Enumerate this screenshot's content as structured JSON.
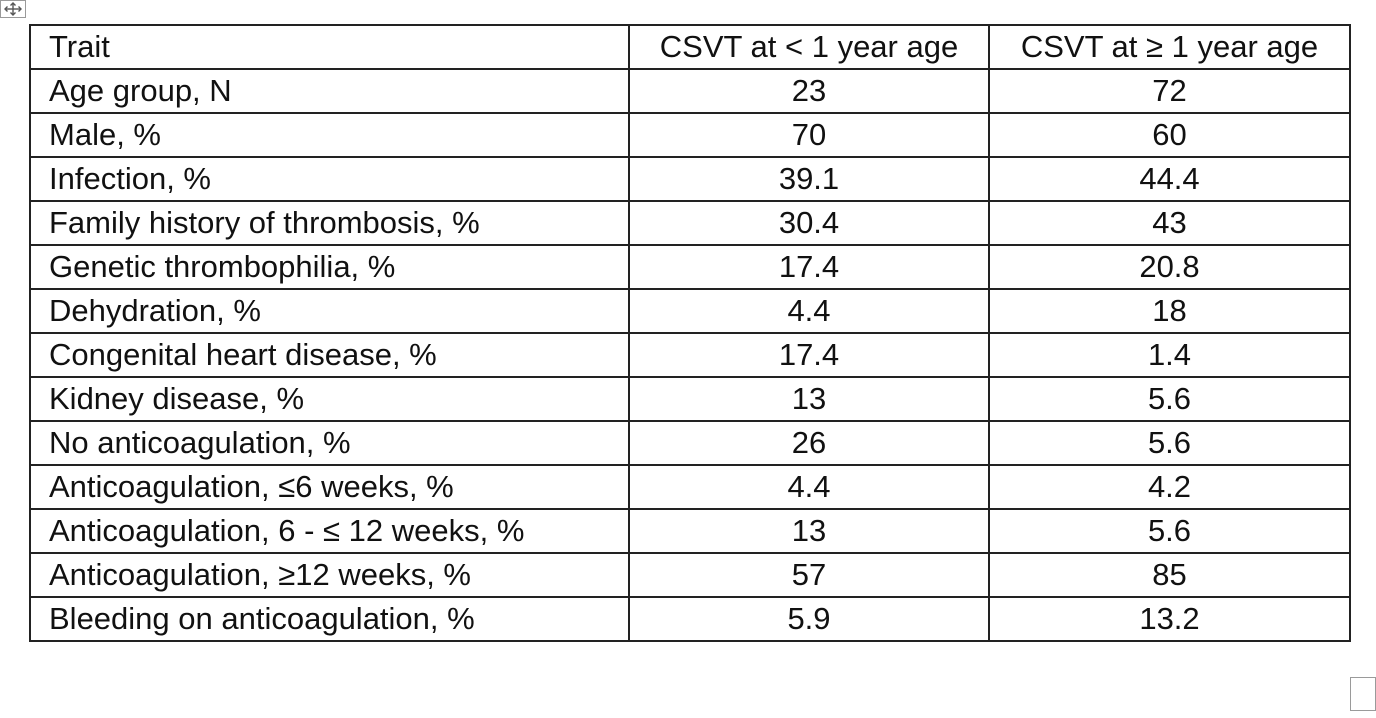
{
  "table": {
    "headers": [
      "Trait",
      "CSVT at < 1 year age",
      "CSVT at ≥ 1 year age"
    ],
    "rows": [
      [
        "Age group, N",
        "23",
        "72"
      ],
      [
        "Male, %",
        "70",
        "60"
      ],
      [
        "Infection, %",
        "39.1",
        "44.4"
      ],
      [
        "Family history of thrombosis, %",
        "30.4",
        "43"
      ],
      [
        "Genetic thrombophilia, %",
        "17.4",
        "20.8"
      ],
      [
        "Dehydration, %",
        "4.4",
        "18"
      ],
      [
        "Congenital heart disease, %",
        "17.4",
        "1.4"
      ],
      [
        "Kidney disease, %",
        "13",
        "5.6"
      ],
      [
        "No anticoagulation, %",
        "26",
        "5.6"
      ],
      [
        "Anticoagulation, ≤6 weeks, %",
        "4.4",
        "4.2"
      ],
      [
        "Anticoagulation, 6 - ≤ 12 weeks, %",
        "13",
        "5.6"
      ],
      [
        "Anticoagulation, ≥12 weeks, %",
        "57",
        "85"
      ],
      [
        "Bleeding on anticoagulation, %",
        "5.9",
        "13.2"
      ]
    ]
  },
  "icons": {
    "move_handle": "four-way-move-icon",
    "resize_handle": "table-resize-handle"
  }
}
